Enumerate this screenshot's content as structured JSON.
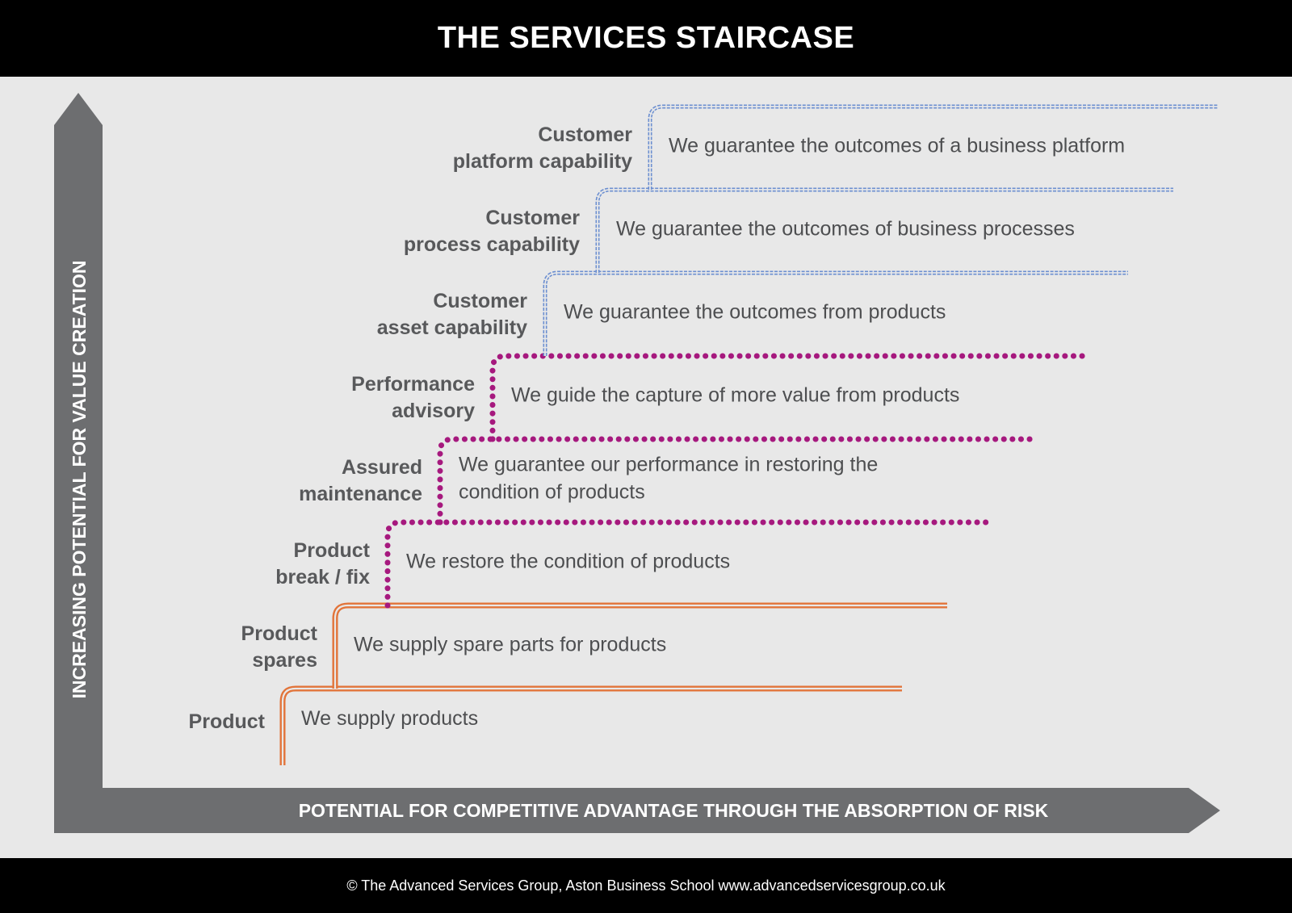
{
  "title": "THE SERVICES STAIRCASE",
  "footer": "© The Advanced Services Group, Aston Business School www.advancedservicesgroup.co.uk",
  "axes": {
    "y_label": "INCREASING POTENTIAL FOR VALUE CREATION",
    "x_label": "POTENTIAL FOR COMPETITIVE ADVANTAGE THROUGH THE ABSORPTION OF RISK"
  },
  "colors": {
    "product_tier": "#e2743a",
    "service_tier": "#a6197e",
    "capability_tier": "#6c8fd0",
    "axis": "#6d6e70",
    "panel": "#e8e8e8"
  },
  "steps": [
    {
      "title": [
        "Product"
      ],
      "desc": [
        "We supply products"
      ],
      "style": "orange"
    },
    {
      "title": [
        "Product",
        "spares"
      ],
      "desc": [
        "We supply spare parts for products"
      ],
      "style": "orange"
    },
    {
      "title": [
        "Product",
        "break / fix"
      ],
      "desc": [
        "We restore the condition of products"
      ],
      "style": "magenta"
    },
    {
      "title": [
        "Assured",
        "maintenance"
      ],
      "desc": [
        "We guarantee our performance in restoring the",
        "condition of products"
      ],
      "style": "magenta"
    },
    {
      "title": [
        "Performance",
        "advisory"
      ],
      "desc": [
        "We guide the capture of more value from products"
      ],
      "style": "magenta"
    },
    {
      "title": [
        "Customer",
        "asset capability"
      ],
      "desc": [
        "We guarantee the outcomes from products"
      ],
      "style": "blue"
    },
    {
      "title": [
        "Customer",
        "process capability"
      ],
      "desc": [
        "We guarantee the outcomes of business processes"
      ],
      "style": "blue"
    },
    {
      "title": [
        "Customer",
        "platform capability"
      ],
      "desc": [
        "We guarantee the outcomes of a business platform"
      ],
      "style": "blue"
    }
  ]
}
